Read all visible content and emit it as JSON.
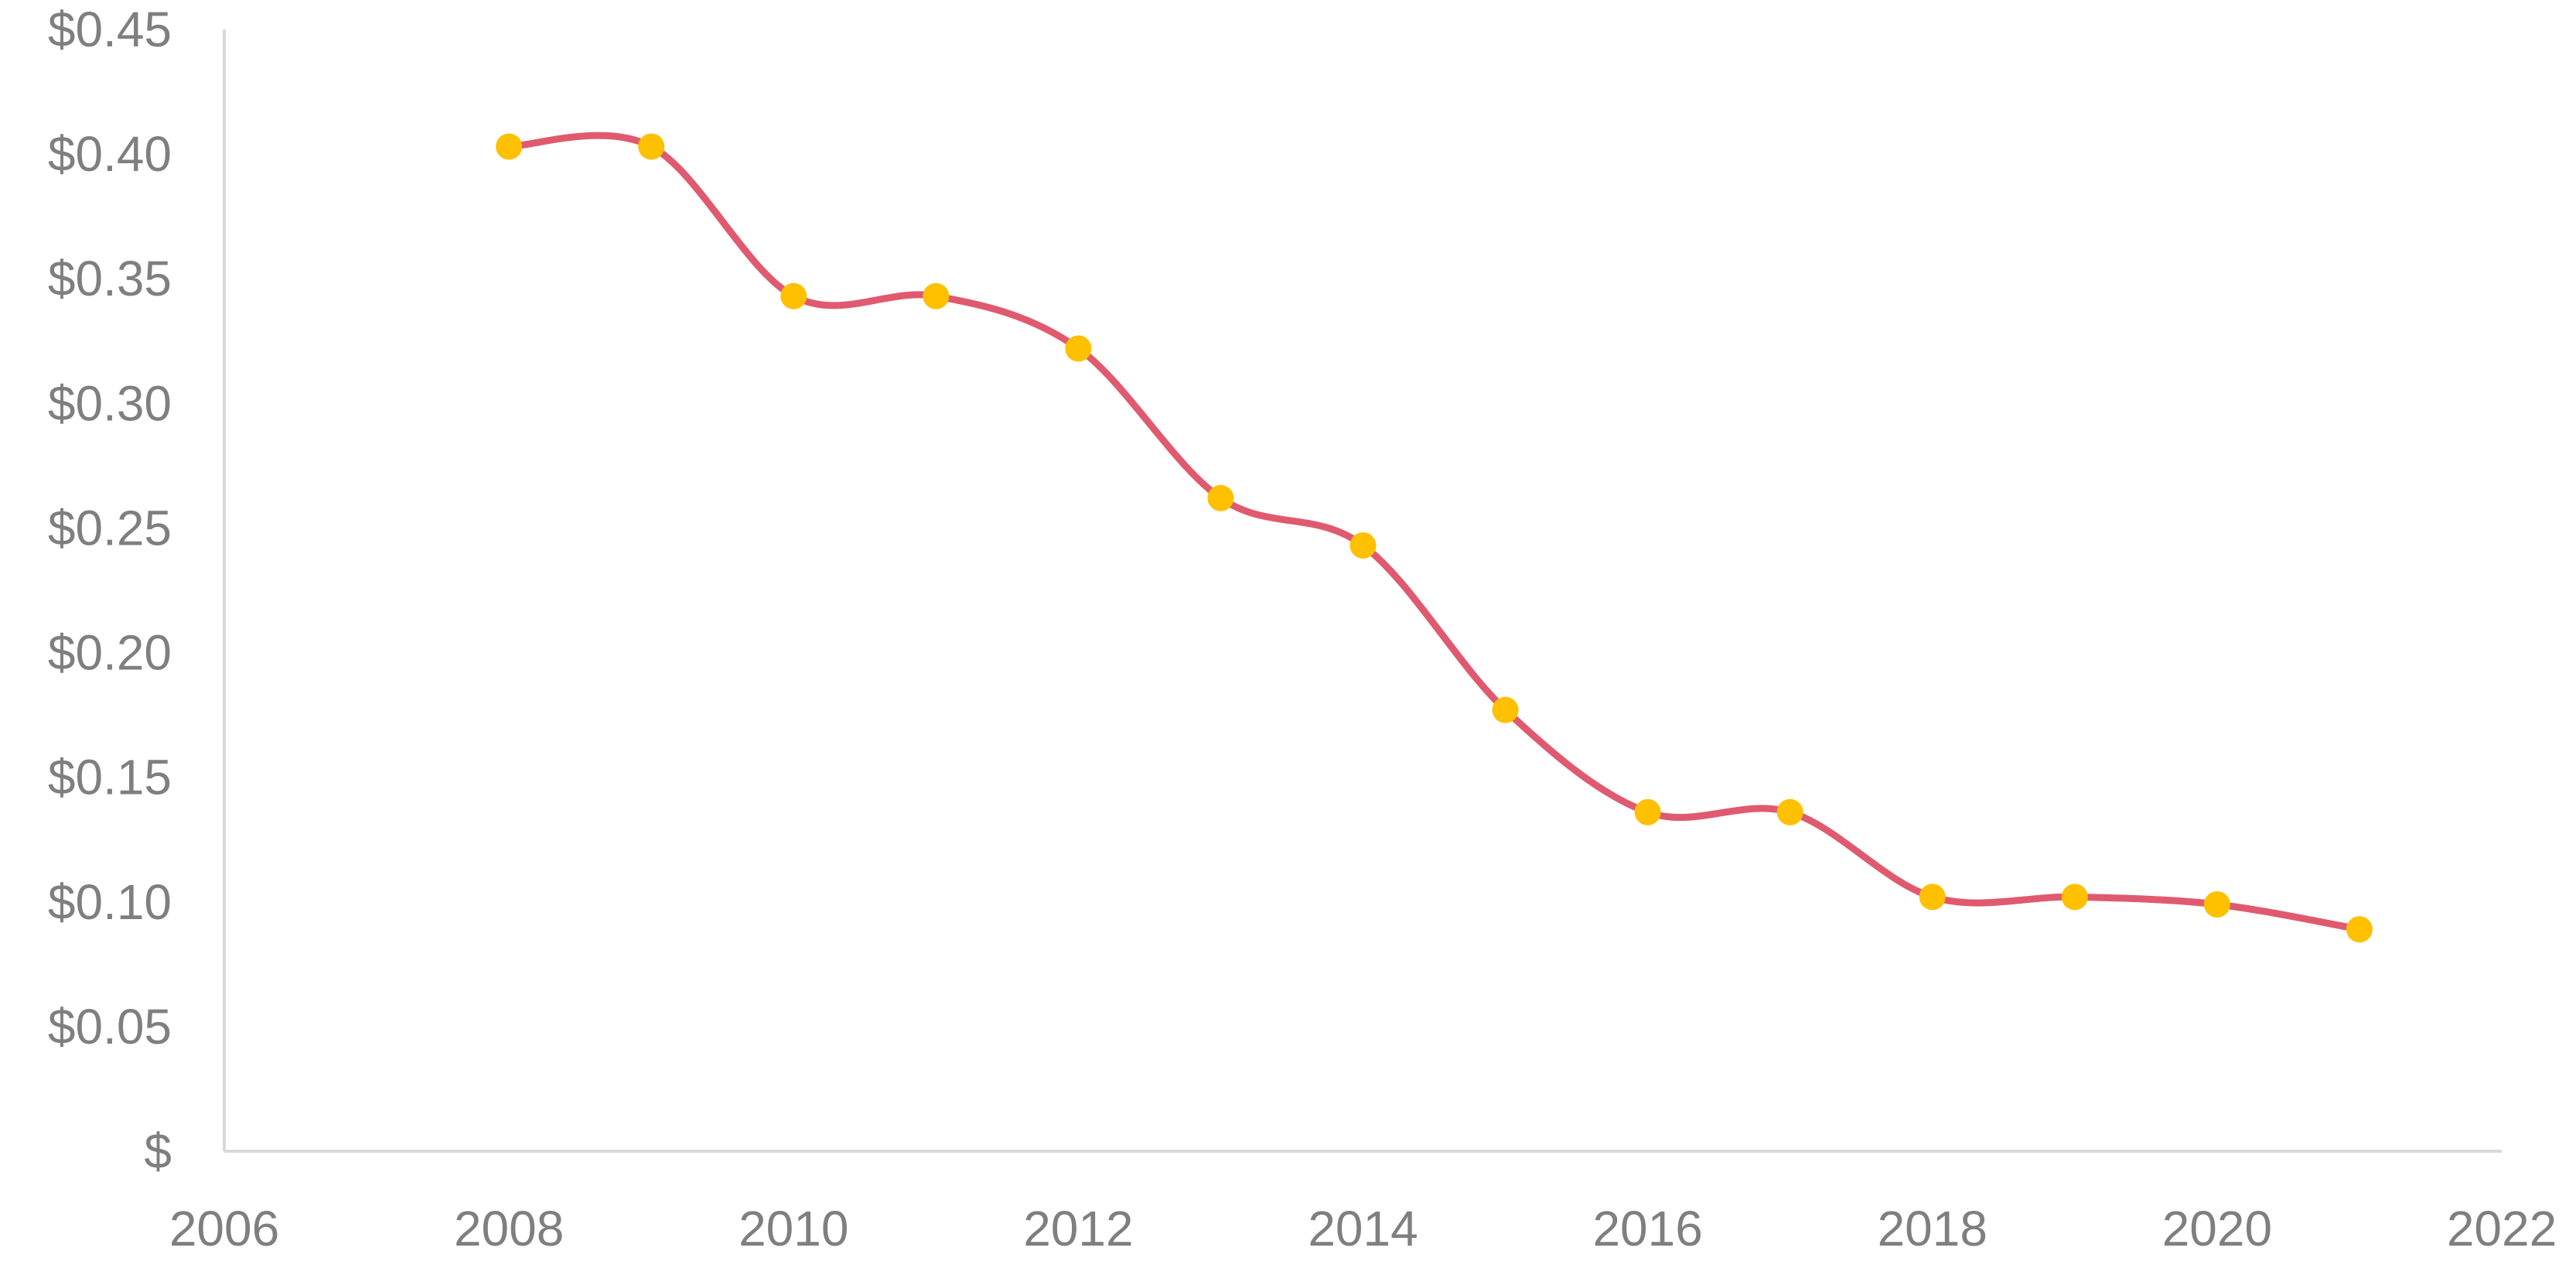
{
  "chart_data": {
    "type": "scatter",
    "title": "",
    "xlabel": "",
    "ylabel": "",
    "xlim": [
      2006,
      2022
    ],
    "ylim": [
      0,
      0.45
    ],
    "grid": false,
    "legend": "none",
    "x_ticks": [
      2006,
      2008,
      2010,
      2012,
      2014,
      2016,
      2018,
      2020,
      2022
    ],
    "x_tick_labels": [
      "2006",
      "2008",
      "2010",
      "2012",
      "2014",
      "2016",
      "2018",
      "2020",
      "2022"
    ],
    "y_ticks": [
      0,
      0.05,
      0.1,
      0.15,
      0.2,
      0.25,
      0.3,
      0.35,
      0.4,
      0.45
    ],
    "y_tick_labels": [
      "$",
      "$0.05",
      "$0.10",
      "$0.15",
      "$0.20",
      "$0.25",
      "$0.30",
      "$0.35",
      "$0.40",
      "$0.45"
    ],
    "series": [
      {
        "x": [
          2008,
          2009,
          2010,
          2011,
          2012,
          2013,
          2014,
          2015,
          2016,
          2017,
          2018,
          2019,
          2020,
          2021
        ],
        "y": [
          0.403,
          0.403,
          0.343,
          0.343,
          0.322,
          0.262,
          0.243,
          0.177,
          0.136,
          0.136,
          0.102,
          0.102,
          0.099,
          0.089
        ],
        "marker_color": "#ffc000"
      }
    ],
    "trendline": {
      "color": "#e05a6f",
      "smooth": true
    },
    "colors": {
      "axis": "#d9d9d9",
      "tick_text": "#7f7f7f"
    }
  }
}
